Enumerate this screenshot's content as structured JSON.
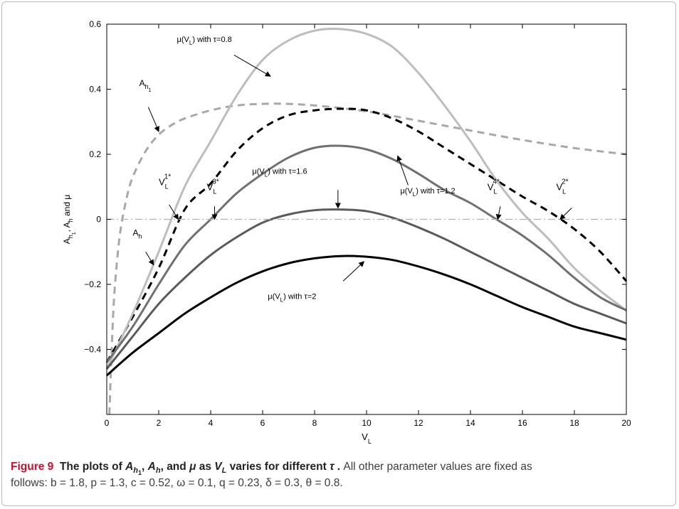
{
  "figure": {
    "label": "Figure 9",
    "title": "The plots of A_{h_1}, A_h, and μ as V_L varies for different τ .",
    "description_line1": "All other parameter values are fixed as",
    "description_line2": "follows: b = 1.8, p = 1.3, c = 0.52, ω = 0.1, q = 0.23, δ = 0.3, θ = 0.8."
  },
  "chart_data": {
    "type": "line",
    "title": "",
    "xlabel": "V_L",
    "ylabel": "A_{h_1}, A_h and μ",
    "xlim": [
      0,
      20
    ],
    "ylim": [
      -0.6,
      0.6
    ],
    "xticks": [
      0,
      2,
      4,
      6,
      8,
      10,
      12,
      14,
      16,
      18,
      20
    ],
    "xtick_labels": [
      "0",
      "2",
      "4",
      "6",
      "8",
      "10",
      "12",
      "14",
      "16",
      "18",
      "20"
    ],
    "yticks": [
      0.6,
      0.4,
      0.2,
      0,
      -0.2,
      -0.4
    ],
    "ytick_labels": [
      "0.6",
      "0.4",
      "0.2",
      "0",
      "−0.2",
      "−0.4"
    ],
    "grid": false,
    "legend": "none",
    "series": [
      {
        "name": "A_{h_1}",
        "style": "dashed",
        "color": "#a8a8a8",
        "x": [
          0.1,
          0.2,
          0.3,
          0.5,
          0.75,
          1,
          1.5,
          2,
          2.5,
          3,
          4,
          5,
          6,
          7,
          8,
          9,
          10,
          11,
          12,
          13,
          14,
          15,
          16,
          17,
          18,
          19,
          20
        ],
        "y": [
          -0.6,
          -0.38,
          -0.22,
          -0.05,
          0.06,
          0.13,
          0.21,
          0.26,
          0.29,
          0.31,
          0.335,
          0.35,
          0.355,
          0.355,
          0.35,
          0.342,
          0.332,
          0.318,
          0.303,
          0.288,
          0.273,
          0.258,
          0.244,
          0.231,
          0.219,
          0.209,
          0.2
        ]
      },
      {
        "name": "A_h",
        "style": "dashed",
        "color": "#000000",
        "x": [
          0,
          1,
          2,
          3,
          4,
          5,
          6,
          7,
          8,
          9,
          10,
          11,
          12,
          13,
          14,
          15,
          16,
          17,
          18,
          19,
          20
        ],
        "y": [
          -0.44,
          -0.3,
          -0.15,
          0.03,
          0.11,
          0.21,
          0.28,
          0.32,
          0.335,
          0.34,
          0.335,
          0.31,
          0.27,
          0.22,
          0.17,
          0.12,
          0.07,
          0.025,
          -0.03,
          -0.1,
          -0.19
        ]
      },
      {
        "name": "μ(V_L) with τ=0.8",
        "style": "solid",
        "color": "#bdbdbd",
        "x": [
          0,
          1,
          2,
          3,
          4,
          5,
          6,
          7,
          8,
          9,
          10,
          11,
          12,
          13,
          14,
          15,
          16,
          17,
          18,
          19,
          20
        ],
        "y": [
          -0.46,
          -0.29,
          -0.1,
          0.1,
          0.24,
          0.38,
          0.49,
          0.55,
          0.58,
          0.585,
          0.57,
          0.53,
          0.45,
          0.35,
          0.24,
          0.12,
          0.02,
          -0.06,
          -0.15,
          -0.22,
          -0.28
        ]
      },
      {
        "name": "μ(V_L) with τ=1.2",
        "style": "solid",
        "color": "#707070",
        "x": [
          0,
          1,
          2,
          3,
          4,
          5,
          6,
          7,
          8,
          9,
          10,
          11,
          12,
          13,
          14,
          15,
          16,
          17,
          18,
          19,
          20
        ],
        "y": [
          -0.44,
          -0.33,
          -0.2,
          -0.08,
          0.0,
          0.08,
          0.14,
          0.19,
          0.22,
          0.226,
          0.215,
          0.185,
          0.14,
          0.09,
          0.05,
          0.0,
          -0.05,
          -0.11,
          -0.18,
          -0.24,
          -0.28
        ]
      },
      {
        "name": "μ(V_L) with τ=1.6",
        "style": "solid",
        "color": "#5a5a5a",
        "x": [
          0,
          1,
          2,
          3,
          4,
          5,
          6,
          7,
          8,
          9,
          10,
          11,
          12,
          13,
          14,
          15,
          16,
          17,
          18,
          19,
          20
        ],
        "y": [
          -0.46,
          -0.36,
          -0.26,
          -0.18,
          -0.11,
          -0.055,
          -0.01,
          0.015,
          0.028,
          0.03,
          0.025,
          0.005,
          -0.025,
          -0.06,
          -0.1,
          -0.14,
          -0.18,
          -0.22,
          -0.26,
          -0.29,
          -0.32
        ]
      },
      {
        "name": "μ(V_L) with τ=2",
        "style": "solid",
        "color": "#000000",
        "x": [
          0,
          1,
          2,
          3,
          4,
          5,
          6,
          7,
          8,
          9,
          10,
          11,
          12,
          13,
          14,
          15,
          16,
          17,
          18,
          19,
          20
        ],
        "y": [
          -0.48,
          -0.41,
          -0.35,
          -0.29,
          -0.24,
          -0.195,
          -0.16,
          -0.135,
          -0.12,
          -0.113,
          -0.115,
          -0.125,
          -0.145,
          -0.17,
          -0.2,
          -0.235,
          -0.27,
          -0.3,
          -0.33,
          -0.35,
          -0.37
        ]
      },
      {
        "name": "zero",
        "style": "dashdot",
        "color": "#b0b0b0",
        "x": [
          0,
          20
        ],
        "y": [
          0,
          0
        ]
      }
    ],
    "annotations": [
      {
        "text": "μ(V_L) with τ=0.8",
        "label_at": [
          2.7,
          0.545
        ],
        "arrow_from": [
          4.9,
          0.505
        ],
        "arrow_to": [
          6.3,
          0.44
        ]
      },
      {
        "text": "A_{h_1}",
        "label_at": [
          1.25,
          0.41
        ],
        "arrow_from": [
          1.6,
          0.345
        ],
        "arrow_to": [
          2.0,
          0.27
        ]
      },
      {
        "text": "μ(V_L) with τ=1.6",
        "label_at": [
          5.6,
          0.14
        ],
        "arrow_from": [
          8.9,
          0.09
        ],
        "arrow_to": [
          8.9,
          0.035
        ]
      },
      {
        "text": "μ(V_L) with τ=1.2",
        "label_at": [
          11.3,
          0.08
        ],
        "arrow_from": [
          11.6,
          0.105
        ],
        "arrow_to": [
          11.2,
          0.195
        ]
      },
      {
        "text": "V_L^{1*}",
        "label_at": [
          2.0,
          0.105
        ],
        "arrow_from": [
          2.4,
          0.045
        ],
        "arrow_to": [
          2.75,
          0.0
        ]
      },
      {
        "text": "V_L^{3*}",
        "label_at": [
          3.85,
          0.09
        ],
        "arrow_from": [
          4.15,
          0.04
        ],
        "arrow_to": [
          4.15,
          0.0
        ]
      },
      {
        "text": "V_L^{4*}",
        "label_at": [
          14.65,
          0.09
        ],
        "arrow_from": [
          15.15,
          0.04
        ],
        "arrow_to": [
          15.05,
          0.0
        ]
      },
      {
        "text": "V_L^{2*}",
        "label_at": [
          17.3,
          0.09
        ],
        "arrow_from": [
          17.9,
          0.035
        ],
        "arrow_to": [
          17.45,
          0.0
        ]
      },
      {
        "text": "A_h",
        "label_at": [
          1.0,
          -0.05
        ],
        "arrow_from": [
          1.5,
          -0.1
        ],
        "arrow_to": [
          1.8,
          -0.14
        ]
      },
      {
        "text": "μ(V_L) with τ=2",
        "label_at": [
          6.2,
          -0.245
        ],
        "arrow_from": [
          9.1,
          -0.19
        ],
        "arrow_to": [
          9.9,
          -0.13
        ]
      }
    ]
  }
}
